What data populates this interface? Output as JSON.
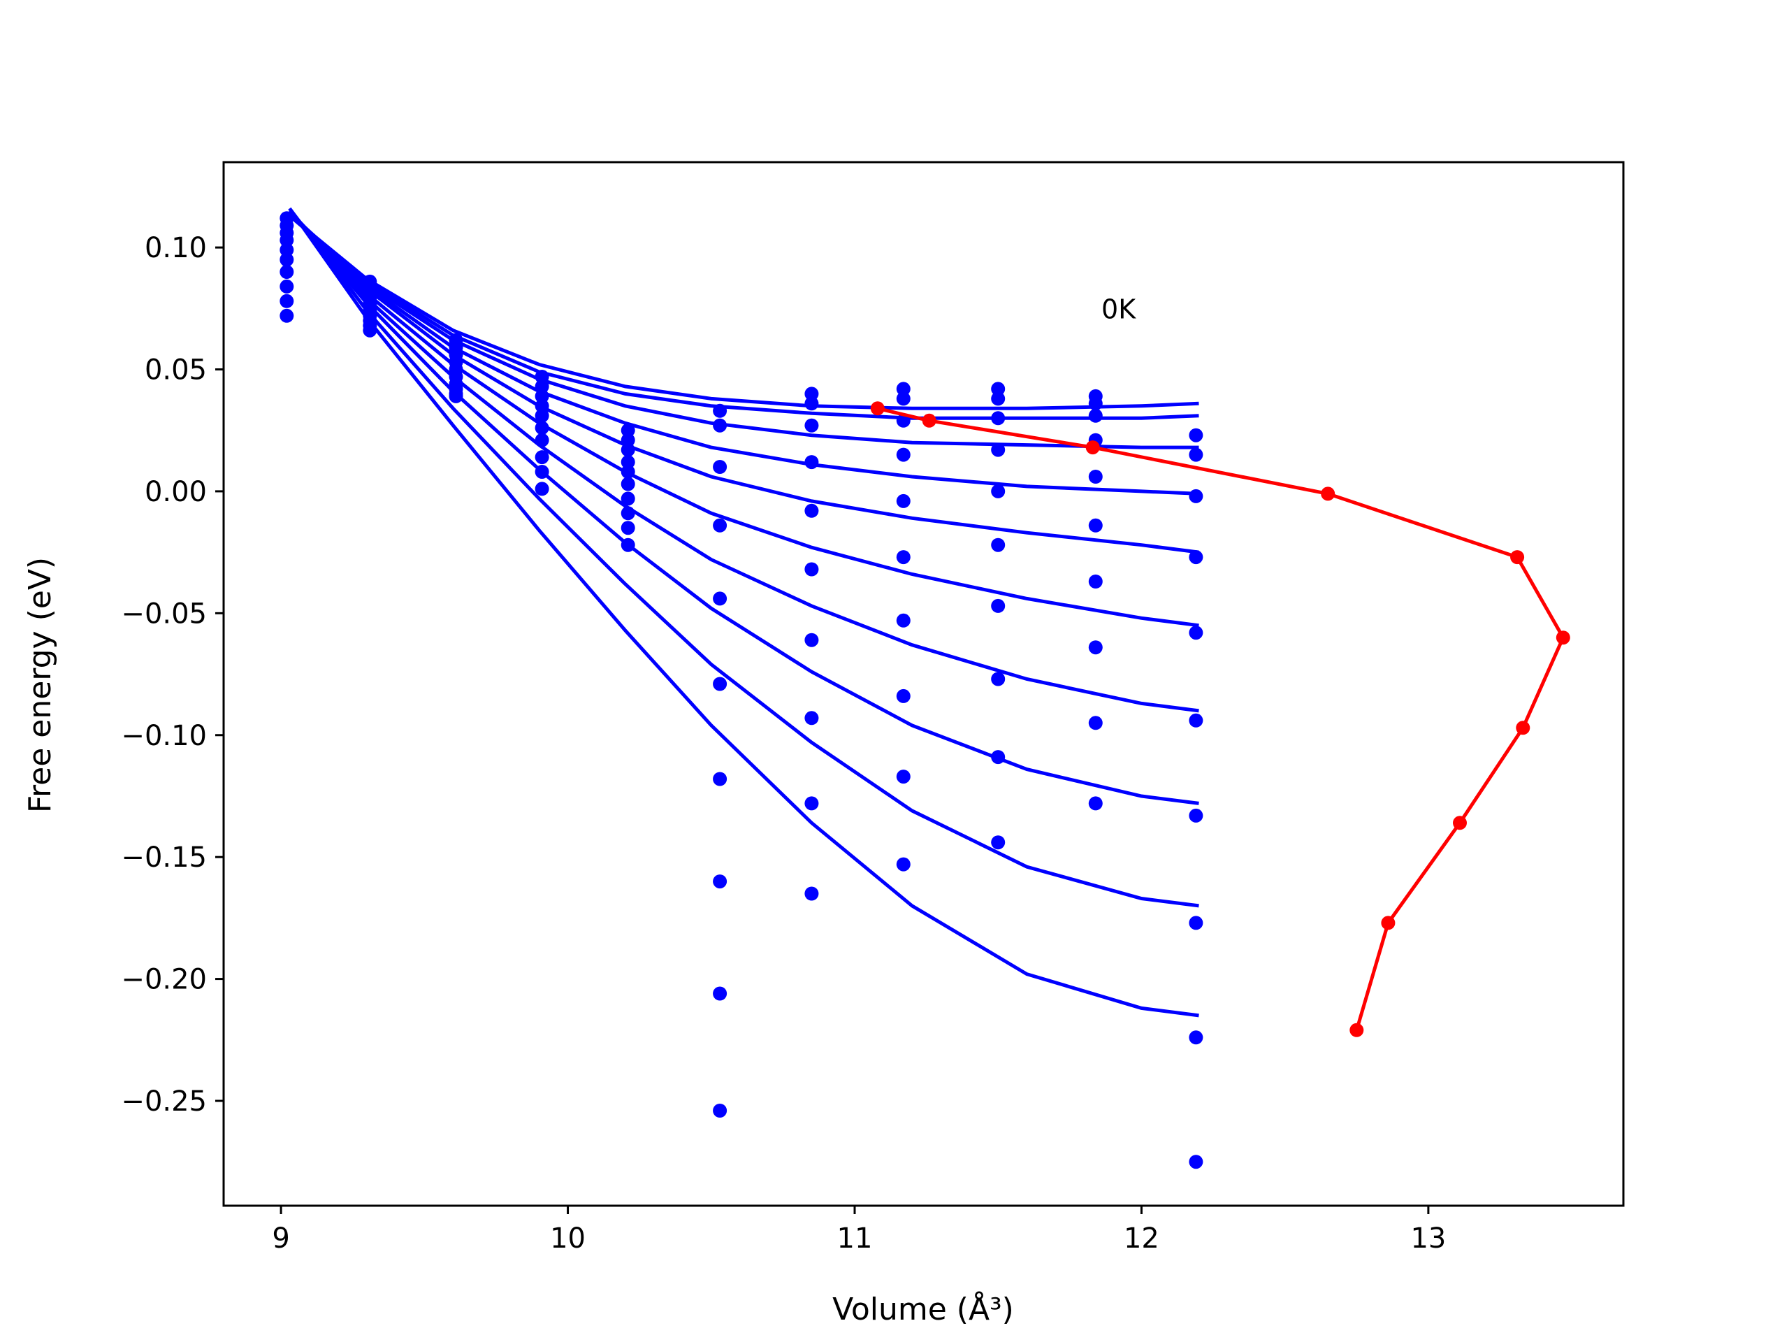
{
  "chart_data": {
    "type": "scatter",
    "title": "",
    "xlabel": "Volume (Å³)",
    "ylabel": "Free energy (eV)",
    "xlim": [
      8.8,
      13.68
    ],
    "ylim": [
      -0.293,
      0.135
    ],
    "xticks": [
      9,
      10,
      11,
      12,
      13
    ],
    "xtick_labels": [
      "9",
      "10",
      "11",
      "12",
      "13"
    ],
    "yticks": [
      0.1,
      0.05,
      0.0,
      -0.05,
      -0.1,
      -0.15,
      -0.2,
      -0.25
    ],
    "ytick_labels": [
      "0.10",
      "0.05",
      "0.00",
      "−0.05",
      "−0.10",
      "−0.15",
      "−0.20",
      "−0.25"
    ],
    "grid": false,
    "annotations": [
      {
        "text": "0K",
        "x": 11.92,
        "y": 0.075
      }
    ],
    "colors": {
      "points": "#0000ff",
      "fits": "#0000ff",
      "minimum_path": "#ff0000"
    },
    "volumes": [
      9.02,
      9.31,
      9.61,
      9.91,
      10.21,
      10.53,
      10.85,
      11.17,
      11.5,
      11.84,
      12.19
    ],
    "series": [
      {
        "values": [
          0.112,
          0.086,
          0.062,
          0.047,
          0.025,
          0.033,
          0.04,
          0.042,
          0.042,
          0.039,
          0.023
        ]
      },
      {
        "values": [
          0.109,
          0.084,
          0.059,
          0.043,
          0.021,
          0.027,
          0.036,
          0.038,
          0.038,
          0.036,
          0.015
        ]
      },
      {
        "values": [
          0.106,
          0.081,
          0.056,
          0.039,
          0.017,
          0.01,
          0.027,
          0.029,
          0.03,
          0.031,
          -0.002
        ]
      },
      {
        "values": [
          0.103,
          0.079,
          0.053,
          0.035,
          0.012,
          -0.014,
          0.012,
          0.015,
          0.017,
          0.021,
          -0.027
        ]
      },
      {
        "values": [
          0.099,
          0.077,
          0.05,
          0.031,
          0.008,
          -0.044,
          -0.008,
          -0.004,
          0.0,
          0.006,
          -0.058
        ]
      },
      {
        "values": [
          0.095,
          0.074,
          0.047,
          0.026,
          0.003,
          -0.079,
          -0.032,
          -0.027,
          -0.022,
          -0.014,
          -0.094
        ]
      },
      {
        "values": [
          0.09,
          0.072,
          0.044,
          0.021,
          -0.003,
          -0.118,
          -0.061,
          -0.053,
          -0.047,
          -0.037,
          -0.133
        ]
      },
      {
        "values": [
          0.084,
          0.07,
          0.042,
          0.014,
          -0.009,
          -0.16,
          -0.093,
          -0.084,
          -0.077,
          -0.064,
          -0.177
        ]
      },
      {
        "values": [
          0.078,
          0.068,
          0.04,
          0.008,
          -0.015,
          -0.206,
          -0.128,
          -0.117,
          -0.109,
          -0.095,
          -0.224
        ]
      },
      {
        "values": [
          0.072,
          0.066,
          0.039,
          0.001,
          -0.022,
          -0.254,
          -0.165,
          -0.153,
          -0.144,
          -0.128,
          -0.275
        ]
      }
    ],
    "fit_curves": [
      {
        "points": [
          [
            9.03,
            0.113
          ],
          [
            9.3,
            0.087
          ],
          [
            9.6,
            0.066
          ],
          [
            9.9,
            0.052
          ],
          [
            10.2,
            0.043
          ],
          [
            10.5,
            0.038
          ],
          [
            10.85,
            0.035
          ],
          [
            11.2,
            0.034
          ],
          [
            11.6,
            0.034
          ],
          [
            12.0,
            0.035
          ],
          [
            12.2,
            0.036
          ]
        ]
      },
      {
        "points": [
          [
            9.03,
            0.113
          ],
          [
            9.3,
            0.086
          ],
          [
            9.6,
            0.064
          ],
          [
            9.9,
            0.049
          ],
          [
            10.2,
            0.04
          ],
          [
            10.5,
            0.035
          ],
          [
            10.85,
            0.032
          ],
          [
            11.2,
            0.03
          ],
          [
            11.6,
            0.03
          ],
          [
            12.0,
            0.03
          ],
          [
            12.2,
            0.031
          ]
        ]
      },
      {
        "points": [
          [
            9.03,
            0.114
          ],
          [
            9.3,
            0.085
          ],
          [
            9.6,
            0.062
          ],
          [
            9.9,
            0.046
          ],
          [
            10.2,
            0.035
          ],
          [
            10.5,
            0.028
          ],
          [
            10.85,
            0.023
          ],
          [
            11.2,
            0.02
          ],
          [
            11.6,
            0.019
          ],
          [
            12.0,
            0.018
          ],
          [
            12.2,
            0.018
          ]
        ]
      },
      {
        "points": [
          [
            9.03,
            0.114
          ],
          [
            9.3,
            0.084
          ],
          [
            9.6,
            0.059
          ],
          [
            9.9,
            0.041
          ],
          [
            10.2,
            0.028
          ],
          [
            10.5,
            0.018
          ],
          [
            10.85,
            0.011
          ],
          [
            11.2,
            0.006
          ],
          [
            11.6,
            0.002
          ],
          [
            12.0,
            0.0
          ],
          [
            12.2,
            -0.001
          ]
        ]
      },
      {
        "points": [
          [
            9.03,
            0.114
          ],
          [
            9.3,
            0.083
          ],
          [
            9.6,
            0.056
          ],
          [
            9.9,
            0.035
          ],
          [
            10.2,
            0.019
          ],
          [
            10.5,
            0.006
          ],
          [
            10.85,
            -0.004
          ],
          [
            11.2,
            -0.011
          ],
          [
            11.6,
            -0.017
          ],
          [
            12.0,
            -0.022
          ],
          [
            12.2,
            -0.025
          ]
        ]
      },
      {
        "points": [
          [
            9.03,
            0.115
          ],
          [
            9.3,
            0.081
          ],
          [
            9.6,
            0.052
          ],
          [
            9.9,
            0.028
          ],
          [
            10.2,
            0.008
          ],
          [
            10.5,
            -0.009
          ],
          [
            10.85,
            -0.023
          ],
          [
            11.2,
            -0.034
          ],
          [
            11.6,
            -0.044
          ],
          [
            12.0,
            -0.052
          ],
          [
            12.2,
            -0.055
          ]
        ]
      },
      {
        "points": [
          [
            9.03,
            0.115
          ],
          [
            9.3,
            0.079
          ],
          [
            9.6,
            0.047
          ],
          [
            9.9,
            0.019
          ],
          [
            10.2,
            -0.006
          ],
          [
            10.5,
            -0.028
          ],
          [
            10.85,
            -0.047
          ],
          [
            11.2,
            -0.063
          ],
          [
            11.6,
            -0.077
          ],
          [
            12.0,
            -0.087
          ],
          [
            12.2,
            -0.09
          ]
        ]
      },
      {
        "points": [
          [
            9.03,
            0.115
          ],
          [
            9.3,
            0.077
          ],
          [
            9.6,
            0.041
          ],
          [
            9.9,
            0.009
          ],
          [
            10.2,
            -0.021
          ],
          [
            10.5,
            -0.048
          ],
          [
            10.85,
            -0.074
          ],
          [
            11.2,
            -0.096
          ],
          [
            11.6,
            -0.114
          ],
          [
            12.0,
            -0.125
          ],
          [
            12.2,
            -0.128
          ]
        ]
      },
      {
        "points": [
          [
            9.03,
            0.116
          ],
          [
            9.3,
            0.074
          ],
          [
            9.6,
            0.034
          ],
          [
            9.9,
            -0.003
          ],
          [
            10.2,
            -0.038
          ],
          [
            10.5,
            -0.071
          ],
          [
            10.85,
            -0.103
          ],
          [
            11.2,
            -0.131
          ],
          [
            11.6,
            -0.154
          ],
          [
            12.0,
            -0.167
          ],
          [
            12.2,
            -0.17
          ]
        ]
      },
      {
        "points": [
          [
            9.03,
            0.116
          ],
          [
            9.3,
            0.071
          ],
          [
            9.6,
            0.027
          ],
          [
            9.9,
            -0.016
          ],
          [
            10.2,
            -0.057
          ],
          [
            10.5,
            -0.096
          ],
          [
            10.85,
            -0.136
          ],
          [
            11.2,
            -0.17
          ],
          [
            11.6,
            -0.198
          ],
          [
            12.0,
            -0.212
          ],
          [
            12.2,
            -0.215
          ]
        ]
      }
    ],
    "minimum_path": {
      "x": [
        11.08,
        11.26,
        11.83,
        12.65,
        13.31,
        13.47,
        13.33,
        13.11,
        12.86,
        12.75
      ],
      "y": [
        0.034,
        0.029,
        0.018,
        -0.001,
        -0.027,
        -0.06,
        -0.097,
        -0.136,
        -0.177,
        -0.221
      ]
    }
  }
}
